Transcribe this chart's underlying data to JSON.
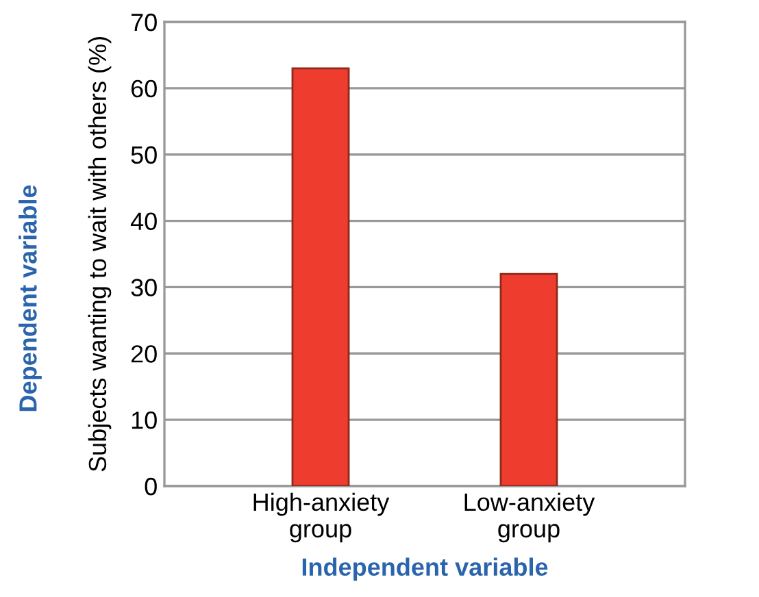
{
  "chart_data": {
    "type": "bar",
    "categories": [
      "High-anxiety\ngroup",
      "Low-anxiety\ngroup"
    ],
    "values": [
      63,
      32
    ],
    "color": "#ee3d2f",
    "ylabel": "Subjects wanting to wait with others (%)",
    "xlabel": "Independent variable",
    "annotations": [
      "Dependent variable"
    ],
    "ylim": [
      0,
      70
    ],
    "yticks": [
      0,
      10,
      20,
      30,
      40,
      50,
      60,
      70
    ],
    "grid": "y",
    "legend": false
  }
}
